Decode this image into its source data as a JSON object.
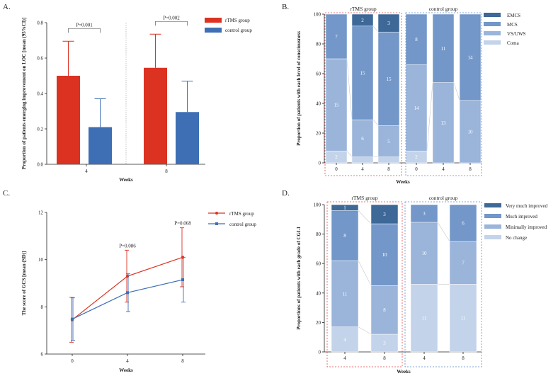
{
  "panels": {
    "A": {
      "letter": "A."
    },
    "B": {
      "letter": "B."
    },
    "C": {
      "letter": "C."
    },
    "D": {
      "letter": "D."
    }
  },
  "colors": {
    "rtms": "#dc3222",
    "control": "#3e6fb5",
    "emcs": "#3d6898",
    "mcs": "#7297c8",
    "vsuws": "#9ab4da",
    "coma": "#c3d3ea",
    "very_much": "#3d6898",
    "much": "#7297c8",
    "minimally": "#9ab4da",
    "no_change": "#c3d3ea",
    "rtms_box": "#e84a4a",
    "control_box": "#5b8fd0"
  },
  "chart_data": [
    {
      "id": "A",
      "type": "bar",
      "ylabel": "Proportion of patients emerging improvement on LOC [mean (95%CI)]",
      "xlabel": "Weeks",
      "categories": [
        "4",
        "8"
      ],
      "ylim": [
        0,
        0.8
      ],
      "yticks": [
        "0.0",
        "0.2",
        "0.4",
        "0.6",
        "0.8"
      ],
      "series": [
        {
          "name": "rTMS group",
          "values": [
            0.5,
            0.545
          ],
          "err_upper": [
            0.695,
            0.735
          ]
        },
        {
          "name": "control group",
          "values": [
            0.21,
            0.295
          ],
          "err_upper": [
            0.37,
            0.47
          ]
        }
      ],
      "annotations": [
        "P=0.001",
        "P=0.002"
      ]
    },
    {
      "id": "B",
      "type": "bar",
      "stacked": true,
      "ylabel": "Proportion of patients with each level of consciousness",
      "xlabel": "Weeks",
      "ylim": [
        0,
        100
      ],
      "yticks": [
        "0",
        "20",
        "40",
        "60",
        "80",
        "100"
      ],
      "groups": [
        "rTMS group",
        "control group"
      ],
      "categories": [
        "0",
        "4",
        "8",
        "0",
        "4",
        "8"
      ],
      "legend": [
        "EMCS",
        "MCS",
        "VS/UWS",
        "Coma"
      ],
      "bars": [
        {
          "group": "rTMS group",
          "week": "0",
          "segments": [
            {
              "level": "Coma",
              "value": 8,
              "label": "2"
            },
            {
              "level": "VS/UWS",
              "value": 62,
              "label": "15"
            },
            {
              "level": "MCS",
              "value": 30,
              "label": "7"
            }
          ]
        },
        {
          "group": "rTMS group",
          "week": "4",
          "segments": [
            {
              "level": "Coma",
              "value": 4,
              "label": ""
            },
            {
              "level": "VS/UWS",
              "value": 25,
              "label": "6"
            },
            {
              "level": "MCS",
              "value": 63,
              "label": "15"
            },
            {
              "level": "EMCS",
              "value": 8,
              "label": "2"
            }
          ]
        },
        {
          "group": "rTMS group",
          "week": "8",
          "segments": [
            {
              "level": "Coma",
              "value": 4,
              "label": ""
            },
            {
              "level": "VS/UWS",
              "value": 21,
              "label": "5"
            },
            {
              "level": "MCS",
              "value": 63,
              "label": "15"
            },
            {
              "level": "EMCS",
              "value": 12,
              "label": "3"
            }
          ]
        },
        {
          "group": "control group",
          "week": "0",
          "segments": [
            {
              "level": "Coma",
              "value": 8,
              "label": "2"
            },
            {
              "level": "VS/UWS",
              "value": 58,
              "label": "14"
            },
            {
              "level": "MCS",
              "value": 34,
              "label": "8"
            }
          ]
        },
        {
          "group": "control group",
          "week": "4",
          "segments": [
            {
              "level": "VS/UWS",
              "value": 54,
              "label": "13"
            },
            {
              "level": "MCS",
              "value": 46,
              "label": "11"
            }
          ]
        },
        {
          "group": "control group",
          "week": "8",
          "segments": [
            {
              "level": "VS/UWS",
              "value": 42,
              "label": "10"
            },
            {
              "level": "MCS",
              "value": 58,
              "label": "14"
            }
          ]
        }
      ]
    },
    {
      "id": "C",
      "type": "line",
      "ylabel": "The score of GCS [mean (SD)]",
      "xlabel": "Weeks",
      "x": [
        0,
        4,
        8
      ],
      "xticks": [
        "0",
        "4",
        "8"
      ],
      "ylim": [
        6,
        12
      ],
      "yticks": [
        "6",
        "8",
        "10",
        "12"
      ],
      "series": [
        {
          "name": "rTMS group",
          "values": [
            7.45,
            9.3,
            10.1
          ],
          "sd": [
            0.95,
            1.1,
            1.25
          ]
        },
        {
          "name": "control group",
          "values": [
            7.48,
            8.6,
            9.15
          ],
          "sd": [
            0.9,
            0.8,
            0.95
          ]
        }
      ],
      "annotations": [
        {
          "x": 4,
          "text": "P=0.086"
        },
        {
          "x": 8,
          "text": "P=0.068"
        }
      ]
    },
    {
      "id": "D",
      "type": "bar",
      "stacked": true,
      "ylabel": "Proportions of patients with each grade of CGI-I",
      "xlabel": "Weeks",
      "ylim": [
        0,
        100
      ],
      "yticks": [
        "0",
        "20",
        "40",
        "60",
        "80",
        "100"
      ],
      "groups": [
        "rTMS group",
        "control group"
      ],
      "categories": [
        "4",
        "8",
        "4",
        "8"
      ],
      "legend": [
        "Very much improved",
        "Much improved",
        "Minimally improved",
        "No change"
      ],
      "bars": [
        {
          "group": "rTMS group",
          "week": "4",
          "segments": [
            {
              "level": "No change",
              "value": 17,
              "label": "4"
            },
            {
              "level": "Minimally improved",
              "value": 45,
              "label": "11"
            },
            {
              "level": "Much improved",
              "value": 34,
              "label": "8"
            },
            {
              "level": "Very much improved",
              "value": 4,
              "label": "1"
            }
          ]
        },
        {
          "group": "rTMS group",
          "week": "8",
          "segments": [
            {
              "level": "No change",
              "value": 12,
              "label": "3"
            },
            {
              "level": "Minimally improved",
              "value": 33,
              "label": "8"
            },
            {
              "level": "Much improved",
              "value": 42,
              "label": "10"
            },
            {
              "level": "Very much improved",
              "value": 13,
              "label": "3"
            }
          ]
        },
        {
          "group": "control group",
          "week": "4",
          "segments": [
            {
              "level": "No change",
              "value": 46,
              "label": "11"
            },
            {
              "level": "Minimally improved",
              "value": 42,
              "label": "10"
            },
            {
              "level": "Much improved",
              "value": 12,
              "label": "3"
            }
          ]
        },
        {
          "group": "control group",
          "week": "8",
          "segments": [
            {
              "level": "No change",
              "value": 46,
              "label": "11"
            },
            {
              "level": "Minimally improved",
              "value": 29,
              "label": "7"
            },
            {
              "level": "Much improved",
              "value": 25,
              "label": "6"
            }
          ]
        }
      ]
    }
  ]
}
